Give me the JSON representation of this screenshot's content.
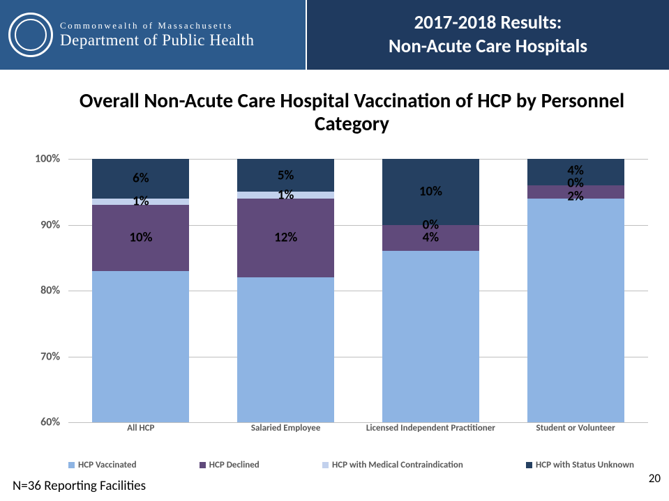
{
  "header": {
    "logo_top": "Commonwealth of Massachusetts",
    "logo_bottom": "Department of Public Health",
    "title": "2017-2018 Results:\nNon-Acute Care Hospitals"
  },
  "chart": {
    "type": "stacked-bar",
    "title": "Overall Non-Acute Care Hospital Vaccination of HCP by Personnel Category",
    "ylim_min": 60,
    "ylim_max": 100,
    "ytick_step": 10,
    "y_ticks": [
      "100%",
      "90%",
      "80%",
      "70%",
      "60%"
    ],
    "background_color": "#ffffff",
    "grid_color": "#bfbfbf",
    "categories": [
      {
        "label": "All HCP"
      },
      {
        "label": "Salaried Employee"
      },
      {
        "label": "Licensed Independent Practitioner"
      },
      {
        "label": "Student or Volunteer"
      }
    ],
    "series": [
      {
        "name": "HCP Vaccinated",
        "color": "#8eb4e3",
        "swatch": "#8eb4e3"
      },
      {
        "name": "HCP Declined",
        "color": "#604a7b",
        "swatch": "#604a7b"
      },
      {
        "name": "HCP with Medical Contraindication",
        "color": "#c2d1ed",
        "swatch": "#c2d1ed"
      },
      {
        "name": "HCP with Status Unknown",
        "color": "#254061",
        "swatch": "#254061"
      }
    ],
    "bars": [
      {
        "segments": [
          {
            "value": 83,
            "label": null
          },
          {
            "value": 10,
            "label": "10%"
          },
          {
            "value": 1,
            "label": "1%"
          },
          {
            "value": 6,
            "label": "6%"
          }
        ]
      },
      {
        "segments": [
          {
            "value": 82,
            "label": null
          },
          {
            "value": 12,
            "label": "12%"
          },
          {
            "value": 1,
            "label": "1%"
          },
          {
            "value": 5,
            "label": "5%"
          }
        ]
      },
      {
        "segments": [
          {
            "value": 86,
            "label": null
          },
          {
            "value": 4,
            "label": "4%"
          },
          {
            "value": 0,
            "label": "0%"
          },
          {
            "value": 10,
            "label": "10%"
          }
        ]
      },
      {
        "segments": [
          {
            "value": 94,
            "label": null
          },
          {
            "value": 2,
            "label": "2%"
          },
          {
            "value": 0,
            "label": "0%"
          },
          {
            "value": 4,
            "label": "4%"
          }
        ]
      }
    ],
    "bar_width": 0.67
  },
  "footer": {
    "note": "N=36 Reporting Facilities",
    "page": "20"
  }
}
